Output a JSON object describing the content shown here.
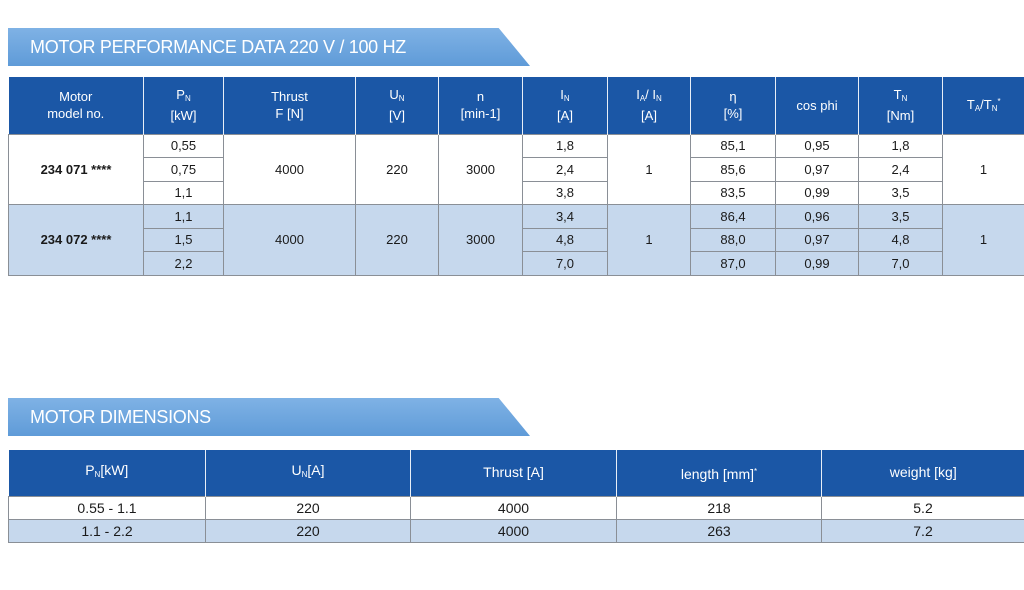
{
  "performance": {
    "title": "MOTOR PERFORMANCE DATA 220 V / 100 HZ",
    "header": [
      [
        [
          {
            "t": "Motor"
          }
        ],
        [
          {
            "t": "model no."
          }
        ]
      ],
      [
        [
          {
            "t": "P"
          },
          {
            "t": "N",
            "sub": true
          }
        ],
        [
          {
            "t": "[kW]"
          }
        ]
      ],
      [
        [
          {
            "t": "Thrust"
          }
        ],
        [
          {
            "t": "F [N]"
          }
        ]
      ],
      [
        [
          {
            "t": "U"
          },
          {
            "t": "N",
            "sub": true
          }
        ],
        [
          {
            "t": "[V]"
          }
        ]
      ],
      [
        [
          {
            "t": "n"
          }
        ],
        [
          {
            "t": "[min-1]"
          }
        ]
      ],
      [
        [
          {
            "t": "I"
          },
          {
            "t": "N",
            "sub": true
          }
        ],
        [
          {
            "t": "[A]"
          }
        ]
      ],
      [
        [
          {
            "t": "I"
          },
          {
            "t": "A",
            "sub": true
          },
          {
            "t": "/ I"
          },
          {
            "t": "N",
            "sub": true
          }
        ],
        [
          {
            "t": "[A]"
          }
        ]
      ],
      [
        [
          {
            "t": "η"
          }
        ],
        [
          {
            "t": "[%]"
          }
        ]
      ],
      [
        [
          {
            "t": "cos phi"
          }
        ]
      ],
      [
        [
          {
            "t": "T"
          },
          {
            "t": "N",
            "sub": true
          }
        ],
        [
          {
            "t": "[Nm]"
          }
        ]
      ],
      [
        [
          {
            "t": "T"
          },
          {
            "t": "A",
            "sub": true
          },
          {
            "t": "/T"
          },
          {
            "t": "N",
            "sub": true
          },
          {
            "t": "*",
            "sup": true
          }
        ]
      ]
    ],
    "groups": [
      {
        "model": "234 071 ****",
        "thrust": "4000",
        "u": "220",
        "n": "3000",
        "ia_in": "1",
        "ta_tn": "1",
        "rows": [
          {
            "p": "0,55",
            "i": "1,8",
            "eta": "85,1",
            "cos": "0,95",
            "t": "1,8"
          },
          {
            "p": "0,75",
            "i": "2,4",
            "eta": "85,6",
            "cos": "0,97",
            "t": "2,4"
          },
          {
            "p": "1,1",
            "i": "3,8",
            "eta": "83,5",
            "cos": "0,99",
            "t": "3,5"
          }
        ]
      },
      {
        "model": "234 072 ****",
        "thrust": "4000",
        "u": "220",
        "n": "3000",
        "ia_in": "1",
        "ta_tn": "1",
        "rows": [
          {
            "p": "1,1",
            "i": "3,4",
            "eta": "86,4",
            "cos": "0,96",
            "t": "3,5"
          },
          {
            "p": "1,5",
            "i": "4,8",
            "eta": "88,0",
            "cos": "0,97",
            "t": "4,8"
          },
          {
            "p": "2,2",
            "i": "7,0",
            "eta": "87,0",
            "cos": "0,99",
            "t": "7,0"
          }
        ]
      }
    ]
  },
  "dimensions": {
    "title": "MOTOR DIMENSIONS",
    "header": [
      [
        [
          {
            "t": "P"
          },
          {
            "t": "N",
            "sub": true
          },
          {
            "t": "[kW]"
          }
        ]
      ],
      [
        [
          {
            "t": "U"
          },
          {
            "t": "N",
            "sub": true
          },
          {
            "t": "[A]"
          }
        ]
      ],
      [
        [
          {
            "t": "Thrust [A]"
          }
        ]
      ],
      [
        [
          {
            "t": "length [mm]"
          },
          {
            "t": "*",
            "sup": true
          }
        ]
      ],
      [
        [
          {
            "t": "weight [kg]"
          }
        ]
      ]
    ],
    "rows": [
      [
        "0.55 - 1.1",
        "220",
        "4000",
        "218",
        "5.2"
      ],
      [
        "1.1 - 2.2",
        "220",
        "4000",
        "263",
        "7.2"
      ]
    ]
  }
}
